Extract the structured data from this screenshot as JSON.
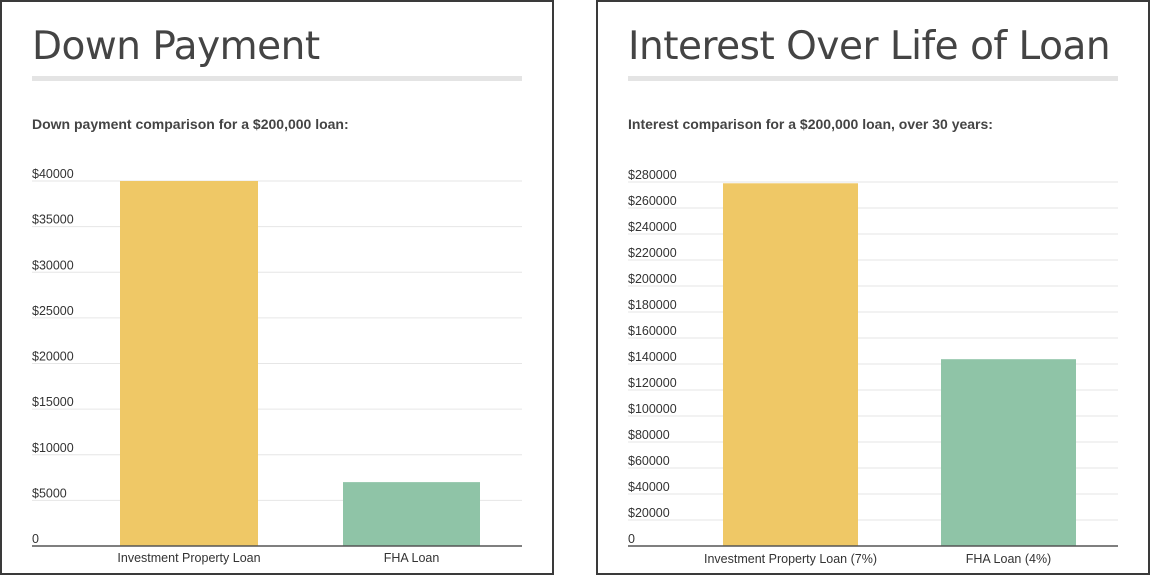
{
  "panels": [
    {
      "title": "Down Payment",
      "subtitle": "Down payment comparison for a $200,000 loan:"
    },
    {
      "title": "Interest Over Life of Loan",
      "subtitle": "Interest comparison for a $200,000 loan, over 30 years:"
    }
  ],
  "colors": {
    "series_primary": "#efc866",
    "series_secondary": "#8fc4a7",
    "grid": "#e6e6e6",
    "axis": "#555555"
  },
  "chart_data": [
    {
      "type": "bar",
      "title": "Down Payment",
      "subtitle": "Down payment comparison for a $200,000 loan:",
      "categories": [
        "Investment Property Loan",
        "FHA Loan"
      ],
      "values": [
        40000,
        7000
      ],
      "bar_colors": [
        "#efc866",
        "#8fc4a7"
      ],
      "ylim": [
        0,
        40000
      ],
      "yticks": [
        0,
        5000,
        10000,
        15000,
        20000,
        25000,
        30000,
        35000,
        40000
      ],
      "ytick_labels": [
        "0",
        "$5000",
        "$10000",
        "$15000",
        "$20000",
        "$25000",
        "$30000",
        "$35000",
        "$40000"
      ],
      "xlabel": "",
      "ylabel": "",
      "grid": true,
      "legend": "none"
    },
    {
      "type": "bar",
      "title": "Interest Over Life of Loan",
      "subtitle": "Interest comparison for a $200,000 loan, over 30 years:",
      "categories": [
        "Investment Property Loan (7%)",
        "FHA Loan (4%)"
      ],
      "values": [
        279000,
        143700
      ],
      "bar_colors": [
        "#efc866",
        "#8fc4a7"
      ],
      "ylim": [
        0,
        280000
      ],
      "yticks": [
        0,
        20000,
        40000,
        60000,
        80000,
        100000,
        120000,
        140000,
        160000,
        180000,
        200000,
        220000,
        240000,
        260000,
        280000
      ],
      "ytick_labels": [
        "0",
        "$20000",
        "$40000",
        "$60000",
        "$80000",
        "$100000",
        "$120000",
        "$140000",
        "$160000",
        "$180000",
        "$200000",
        "$220000",
        "$240000",
        "$260000",
        "$280000"
      ],
      "xlabel": "",
      "ylabel": "",
      "grid": true,
      "legend": "none"
    }
  ]
}
